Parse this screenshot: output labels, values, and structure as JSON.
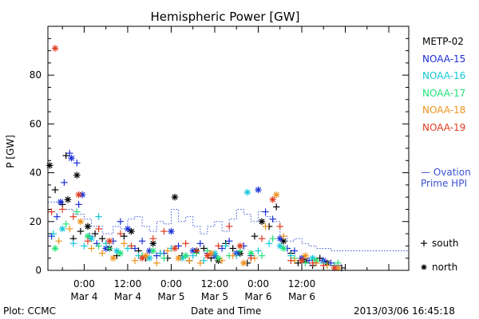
{
  "chart_data": {
    "type": "scatter",
    "title": "Hemispheric Power [GW]",
    "ylabel": "P [GW]",
    "xlabel": "Date and Time",
    "ylim": [
      0,
      100
    ],
    "yticks": [
      0,
      20,
      40,
      60,
      80
    ],
    "xlim_hours": [
      -10,
      89.5
    ],
    "xticks": [
      {
        "hour": 0,
        "time": "0:00",
        "date": "Mar 4"
      },
      {
        "hour": 12,
        "time": "12:00",
        "date": "Mar 4"
      },
      {
        "hour": 24,
        "time": "0:00",
        "date": "Mar 5"
      },
      {
        "hour": 36,
        "time": "12:00",
        "date": "Mar 5"
      },
      {
        "hour": 48,
        "time": "0:00",
        "date": "Mar 6"
      },
      {
        "hour": 60,
        "time": "12:00",
        "date": "Mar 6"
      }
    ],
    "series": [
      {
        "name": "METP-02",
        "color": "#000000",
        "points": [
          [
            -9.5,
            43
          ],
          [
            -8,
            33
          ],
          [
            -6,
            27
          ],
          [
            -4.5,
            29
          ],
          [
            -3,
            13
          ],
          [
            -1,
            16
          ],
          [
            1,
            18
          ],
          [
            3,
            15
          ],
          [
            5,
            13
          ],
          [
            7,
            9
          ],
          [
            9,
            6
          ],
          [
            11,
            14
          ],
          [
            13,
            16
          ],
          [
            15,
            8
          ],
          [
            17,
            5
          ],
          [
            19,
            11
          ],
          [
            21,
            7
          ],
          [
            23,
            5
          ],
          [
            25,
            30
          ],
          [
            27,
            6
          ],
          [
            29,
            4
          ],
          [
            31,
            8
          ],
          [
            33,
            9
          ],
          [
            35,
            5
          ],
          [
            37,
            4
          ],
          [
            39,
            11
          ],
          [
            41,
            9
          ],
          [
            43,
            7
          ],
          [
            45,
            3
          ],
          [
            47,
            14
          ],
          [
            49,
            20
          ],
          [
            51,
            18
          ],
          [
            53,
            26
          ],
          [
            55,
            12
          ],
          [
            57,
            7
          ],
          [
            59,
            3
          ],
          [
            61,
            4
          ],
          [
            63,
            2
          ],
          [
            65,
            5
          ],
          [
            67,
            3
          ],
          [
            69,
            2
          ],
          [
            71,
            1
          ],
          [
            -2,
            39
          ],
          [
            -5,
            47
          ]
        ]
      },
      {
        "name": "NOAA-15",
        "color": "#1a2fd6",
        "points": [
          [
            -9,
            14
          ],
          [
            -7.5,
            22
          ],
          [
            -6.5,
            28
          ],
          [
            -5.5,
            36
          ],
          [
            -4,
            48
          ],
          [
            -3.5,
            46
          ],
          [
            -2,
            44
          ],
          [
            -1.5,
            27
          ],
          [
            -0.5,
            31
          ],
          [
            1.5,
            14
          ],
          [
            3.5,
            11
          ],
          [
            6,
            9
          ],
          [
            8,
            12
          ],
          [
            10,
            20
          ],
          [
            12,
            17
          ],
          [
            14,
            9
          ],
          [
            16,
            12
          ],
          [
            18,
            8
          ],
          [
            20,
            6
          ],
          [
            22,
            7
          ],
          [
            24,
            16
          ],
          [
            26,
            10
          ],
          [
            28,
            6
          ],
          [
            30,
            8
          ],
          [
            32,
            11
          ],
          [
            34,
            7
          ],
          [
            36,
            6
          ],
          [
            38,
            9
          ],
          [
            40,
            12
          ],
          [
            42,
            7
          ],
          [
            44,
            10
          ],
          [
            46,
            6
          ],
          [
            48,
            33
          ],
          [
            50,
            24
          ],
          [
            52,
            21
          ],
          [
            54,
            13
          ],
          [
            56,
            9
          ],
          [
            58,
            8
          ],
          [
            60,
            5
          ],
          [
            62,
            4
          ],
          [
            64,
            3
          ],
          [
            66,
            4
          ],
          [
            68,
            3
          ],
          [
            70,
            2
          ]
        ]
      },
      {
        "name": "NOAA-16",
        "color": "#14c8d8",
        "points": [
          [
            -8.5,
            15
          ],
          [
            -6,
            17
          ],
          [
            -3,
            11
          ],
          [
            0,
            10
          ],
          [
            2,
            13
          ],
          [
            4,
            22
          ],
          [
            6,
            11
          ],
          [
            9,
            8
          ],
          [
            12,
            9
          ],
          [
            15,
            6
          ],
          [
            18,
            5
          ],
          [
            21,
            7
          ],
          [
            24,
            9
          ],
          [
            27,
            5
          ],
          [
            30,
            6
          ],
          [
            33,
            4
          ],
          [
            36,
            7
          ],
          [
            39,
            10
          ],
          [
            42,
            6
          ],
          [
            45,
            32
          ],
          [
            48,
            8
          ],
          [
            51,
            11
          ],
          [
            54,
            10
          ],
          [
            57,
            6
          ],
          [
            60,
            4
          ],
          [
            63,
            5
          ],
          [
            66,
            3
          ],
          [
            69,
            2
          ]
        ]
      },
      {
        "name": "NOAA-17",
        "color": "#22e27a",
        "points": [
          [
            -8,
            9
          ],
          [
            -5,
            19
          ],
          [
            -2,
            24
          ],
          [
            1,
            14
          ],
          [
            4,
            10
          ],
          [
            7,
            9
          ],
          [
            10,
            7
          ],
          [
            13,
            10
          ],
          [
            16,
            6
          ],
          [
            19,
            8
          ],
          [
            22,
            5
          ],
          [
            25,
            9
          ],
          [
            28,
            6
          ],
          [
            31,
            7
          ],
          [
            34,
            8
          ],
          [
            37,
            5
          ],
          [
            40,
            6
          ],
          [
            43,
            8
          ],
          [
            46,
            7
          ],
          [
            49,
            6
          ],
          [
            52,
            13
          ],
          [
            55,
            9
          ],
          [
            58,
            5
          ],
          [
            61,
            3
          ],
          [
            64,
            4
          ],
          [
            67,
            2
          ],
          [
            70,
            3
          ]
        ]
      },
      {
        "name": "NOAA-18",
        "color": "#f0921c",
        "points": [
          [
            -7,
            12
          ],
          [
            -4,
            17
          ],
          [
            -1,
            20
          ],
          [
            2,
            9
          ],
          [
            5,
            7
          ],
          [
            8,
            5
          ],
          [
            11,
            11
          ],
          [
            14,
            4
          ],
          [
            17,
            6
          ],
          [
            20,
            3
          ],
          [
            23,
            8
          ],
          [
            26,
            5
          ],
          [
            29,
            4
          ],
          [
            32,
            3
          ],
          [
            35,
            7
          ],
          [
            38,
            4
          ],
          [
            41,
            6
          ],
          [
            44,
            3
          ],
          [
            47,
            5
          ],
          [
            50,
            18
          ],
          [
            53,
            31
          ],
          [
            55,
            14
          ],
          [
            58,
            4
          ],
          [
            61,
            6
          ],
          [
            64,
            3
          ],
          [
            67,
            2
          ],
          [
            70,
            1
          ]
        ]
      },
      {
        "name": "NOAA-19",
        "color": "#e23a1e",
        "points": [
          [
            -9,
            24
          ],
          [
            -8,
            91
          ],
          [
            -6,
            25
          ],
          [
            -3,
            22
          ],
          [
            -1.5,
            31
          ],
          [
            1,
            12
          ],
          [
            4,
            17
          ],
          [
            7,
            12
          ],
          [
            10,
            15
          ],
          [
            13,
            10
          ],
          [
            16,
            5
          ],
          [
            19,
            13
          ],
          [
            22,
            16
          ],
          [
            25,
            9
          ],
          [
            28,
            11
          ],
          [
            31,
            8
          ],
          [
            34,
            6
          ],
          [
            37,
            10
          ],
          [
            40,
            18
          ],
          [
            43,
            10
          ],
          [
            46,
            5
          ],
          [
            49,
            13
          ],
          [
            52,
            29
          ],
          [
            54,
            18
          ],
          [
            57,
            4
          ],
          [
            60,
            4
          ],
          [
            63,
            3
          ],
          [
            66,
            2
          ],
          [
            69,
            1
          ]
        ]
      }
    ],
    "ovation": {
      "label_line1": "— Ovation",
      "label_line2": "Prime HPI",
      "color": "#3a52d6",
      "steps": [
        [
          -10,
          28
        ],
        [
          -6,
          25
        ],
        [
          -3,
          23
        ],
        [
          0,
          21
        ],
        [
          2,
          18
        ],
        [
          5,
          15
        ],
        [
          8,
          18
        ],
        [
          10,
          17
        ],
        [
          12,
          21
        ],
        [
          14,
          22
        ],
        [
          16,
          18
        ],
        [
          18,
          16
        ],
        [
          20,
          20
        ],
        [
          22,
          19
        ],
        [
          24,
          25
        ],
        [
          26,
          20
        ],
        [
          28,
          22
        ],
        [
          30,
          18
        ],
        [
          32,
          15
        ],
        [
          34,
          18
        ],
        [
          36,
          20
        ],
        [
          38,
          16
        ],
        [
          40,
          21
        ],
        [
          42,
          25
        ],
        [
          44,
          23
        ],
        [
          46,
          20
        ],
        [
          48,
          24
        ],
        [
          50,
          22
        ],
        [
          52,
          20
        ],
        [
          54,
          14
        ],
        [
          56,
          12
        ],
        [
          58,
          13
        ],
        [
          60,
          11
        ],
        [
          62,
          10
        ],
        [
          64,
          9
        ],
        [
          68,
          8
        ],
        [
          72,
          8
        ]
      ]
    },
    "marker_legend": [
      {
        "symbol": "+",
        "label": "south"
      },
      {
        "symbol": "*",
        "label": "north"
      }
    ]
  },
  "footer": {
    "plot_credit": "Plot: CCMC",
    "xlabel": "Date and Time",
    "timestamp": "2013/03/06 16:45:18"
  }
}
